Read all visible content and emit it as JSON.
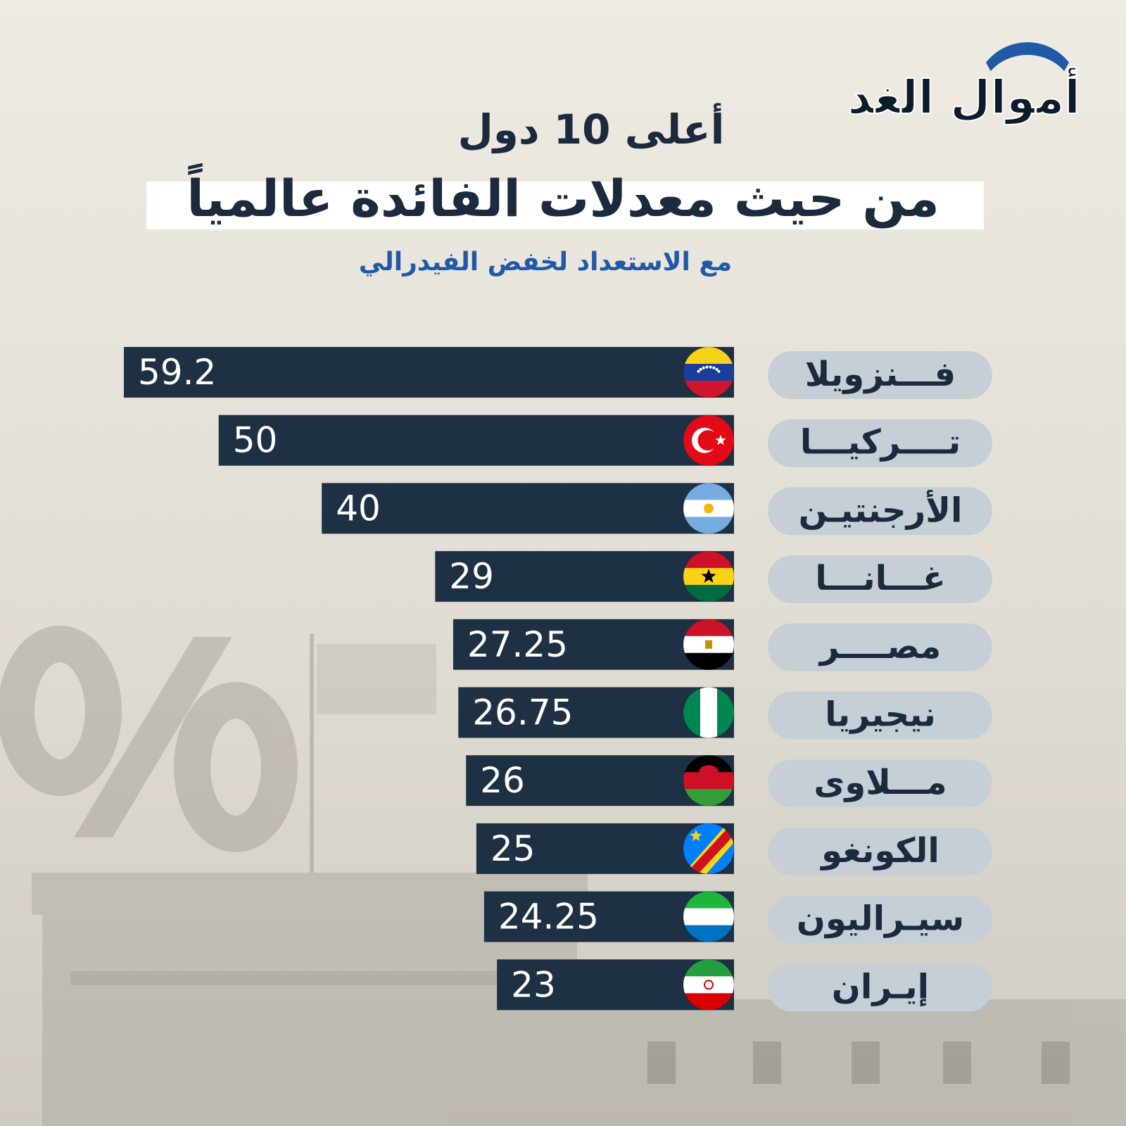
{
  "logo": {
    "text": "أموال الغد"
  },
  "header": {
    "title_line1": "أعلى 10 دول",
    "title_line2": "من حيث معدلات الفائدة عالمياً",
    "subtitle": "مع الاستعداد لخفض الفيدرالي"
  },
  "colors": {
    "bar": "#1e3044",
    "label_pill": "#c6cfd6",
    "title": "#1b2a3d",
    "subtitle": "#1f5aa6",
    "value_text": "#ffffff"
  },
  "chart_data": {
    "type": "bar",
    "orientation": "horizontal",
    "categories": [
      "فـــنزويلا",
      "تــــركيـــا",
      "الأرجنتيـن",
      "غـــانـــا",
      "مصــــر",
      "نيجيريا",
      "مـــلاوى",
      "الكونغو",
      "سيـراليون",
      "إيـران"
    ],
    "values": [
      59.2,
      50,
      40,
      29,
      27.25,
      26.75,
      26,
      25,
      24.25,
      23
    ],
    "value_labels": [
      "59.2",
      "50",
      "40",
      "29",
      "27.25",
      "26.75",
      "26",
      "25",
      "24.25",
      "23"
    ],
    "flags": [
      "venezuela-flag-icon",
      "turkey-flag-icon",
      "argentina-flag-icon",
      "ghana-flag-icon",
      "egypt-flag-icon",
      "nigeria-flag-icon",
      "malawi-flag-icon",
      "congo-flag-icon",
      "sierra-leone-flag-icon",
      "iran-flag-icon"
    ],
    "xlim": [
      0,
      59.2
    ],
    "grid": false,
    "legend": "none"
  }
}
